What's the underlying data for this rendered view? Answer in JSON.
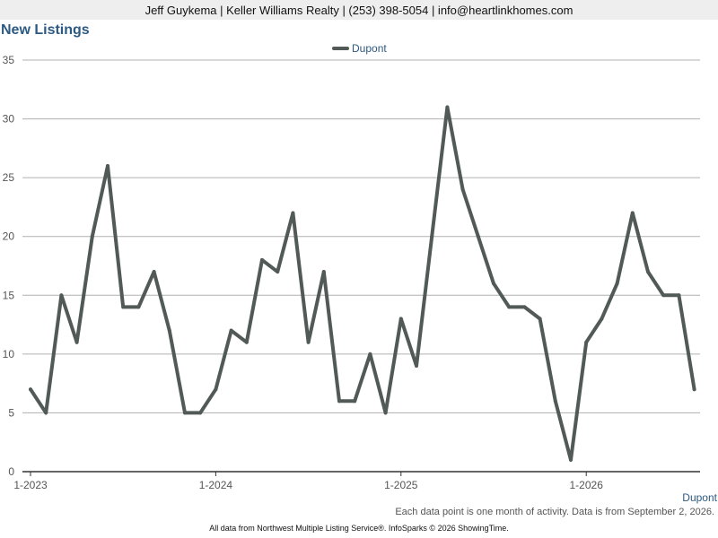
{
  "header": {
    "agent_line": "Jeff Guykema | Keller Williams Realty | (253) 398-5054 | info@heartlinkhomes.com"
  },
  "footer": {
    "note": "Each data point is one month of activity. Data is from September 2, 2026.",
    "source": "All data from Northwest Multiple Listing Service®. InfoSparks © 2026 ShowingTime."
  },
  "chart_data": {
    "type": "line",
    "title": "New Listings",
    "xlabel": "",
    "ylabel": "",
    "ylim": [
      0,
      35
    ],
    "yticks": [
      0,
      5,
      10,
      15,
      20,
      25,
      30,
      35
    ],
    "grid": true,
    "legend_position": "top-center",
    "x_tick_labels": [
      "1-2023",
      "1-2024",
      "1-2025",
      "1-2026"
    ],
    "x_tick_months": [
      "2023-01",
      "2024-01",
      "2025-01",
      "2026-01"
    ],
    "end_label": "Dupont",
    "colors": {
      "line": "#525a58",
      "grid": "#b0b0b0",
      "axis_text": "#555555",
      "legend_text": "#2d5a83"
    },
    "x": [
      "2023-01",
      "2023-02",
      "2023-03",
      "2023-04",
      "2023-05",
      "2023-06",
      "2023-07",
      "2023-08",
      "2023-09",
      "2023-10",
      "2023-11",
      "2023-12",
      "2024-01",
      "2024-02",
      "2024-03",
      "2024-04",
      "2024-05",
      "2024-06",
      "2024-07",
      "2024-08",
      "2024-09",
      "2024-10",
      "2024-11",
      "2024-12",
      "2025-01",
      "2025-02",
      "2025-03",
      "2025-04",
      "2025-05",
      "2025-06",
      "2025-07",
      "2025-08",
      "2025-09",
      "2025-10",
      "2025-11",
      "2025-12",
      "2026-01",
      "2026-02",
      "2026-03",
      "2026-04",
      "2026-05",
      "2026-06",
      "2026-07",
      "2026-08"
    ],
    "series": [
      {
        "name": "Dupont",
        "values": [
          7,
          5,
          15,
          11,
          20,
          26,
          14,
          14,
          17,
          12,
          5,
          5,
          7,
          12,
          11,
          18,
          17,
          22,
          11,
          17,
          6,
          6,
          10,
          5,
          13,
          9,
          20,
          31,
          24,
          20,
          16,
          14,
          14,
          13,
          6,
          1,
          11,
          13,
          16,
          22,
          17,
          15,
          15,
          7
        ]
      }
    ]
  }
}
